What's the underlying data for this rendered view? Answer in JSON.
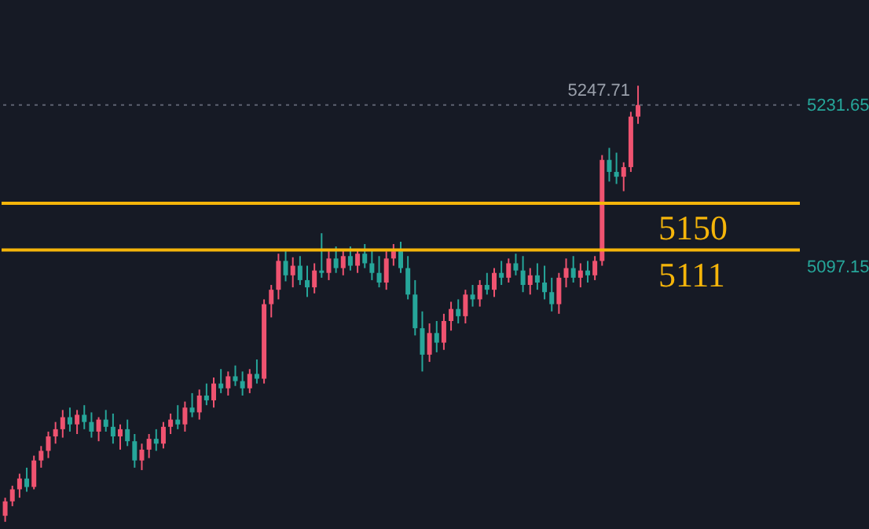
{
  "chart_data": {
    "type": "candlestick",
    "categories": [
      null,
      null,
      null,
      null,
      null,
      null,
      null,
      null,
      null,
      null,
      null,
      null,
      null,
      null,
      null,
      null,
      null,
      null,
      null,
      null,
      null,
      null,
      null,
      null,
      null,
      null,
      null,
      null,
      null,
      null,
      null,
      null,
      null,
      null,
      null,
      null,
      null,
      null,
      null,
      null,
      null,
      null,
      null,
      null,
      null,
      null,
      null,
      null,
      null,
      null,
      null,
      null,
      null,
      null,
      null,
      null,
      null,
      null,
      null,
      null,
      null,
      null,
      null,
      null,
      null,
      null,
      null,
      null,
      null,
      null,
      null,
      null,
      null,
      null,
      null,
      null,
      null,
      null,
      null,
      null,
      null,
      null,
      null,
      null,
      null,
      null,
      null,
      null,
      null,
      null,
      null,
      null,
      null,
      null,
      null,
      null,
      null,
      null,
      null,
      null,
      null,
      null,
      null,
      null,
      null,
      null,
      null,
      null,
      null,
      null,
      null
    ],
    "ohlc": [
      [
        4890,
        4905,
        4885,
        4902
      ],
      [
        4902,
        4915,
        4898,
        4912
      ],
      [
        4912,
        4925,
        4905,
        4921
      ],
      [
        4921,
        4930,
        4910,
        4914
      ],
      [
        4914,
        4940,
        4912,
        4936
      ],
      [
        4936,
        4948,
        4930,
        4944
      ],
      [
        4944,
        4960,
        4938,
        4956
      ],
      [
        4956,
        4968,
        4950,
        4962
      ],
      [
        4962,
        4978,
        4955,
        4972
      ],
      [
        4972,
        4980,
        4960,
        4966
      ],
      [
        4966,
        4978,
        4958,
        4974
      ],
      [
        4974,
        4982,
        4962,
        4968
      ],
      [
        4968,
        4976,
        4955,
        4960
      ],
      [
        4960,
        4972,
        4952,
        4970
      ],
      [
        4970,
        4978,
        4960,
        4964
      ],
      [
        4964,
        4975,
        4950,
        4956
      ],
      [
        4956,
        4966,
        4945,
        4962
      ],
      [
        4962,
        4970,
        4948,
        4952
      ],
      [
        4952,
        4958,
        4930,
        4936
      ],
      [
        4936,
        4950,
        4928,
        4945
      ],
      [
        4945,
        4958,
        4938,
        4954
      ],
      [
        4954,
        4962,
        4944,
        4950
      ],
      [
        4950,
        4968,
        4946,
        4964
      ],
      [
        4964,
        4975,
        4958,
        4970
      ],
      [
        4970,
        4982,
        4962,
        4966
      ],
      [
        4966,
        4985,
        4960,
        4980
      ],
      [
        4980,
        4992,
        4972,
        4976
      ],
      [
        4976,
        4995,
        4970,
        4990
      ],
      [
        4990,
        5000,
        4982,
        4986
      ],
      [
        4986,
        5005,
        4980,
        5000
      ],
      [
        5000,
        5012,
        4992,
        4996
      ],
      [
        4996,
        5010,
        4990,
        5006
      ],
      [
        5006,
        5015,
        4998,
        5002
      ],
      [
        5002,
        5010,
        4990,
        4996
      ],
      [
        4996,
        5012,
        4992,
        5008
      ],
      [
        5008,
        5020,
        5000,
        5004
      ],
      [
        5004,
        5070,
        5000,
        5066
      ],
      [
        5066,
        5082,
        5055,
        5078
      ],
      [
        5078,
        5108,
        5070,
        5102
      ],
      [
        5102,
        5110,
        5085,
        5090
      ],
      [
        5090,
        5105,
        5080,
        5098
      ],
      [
        5098,
        5106,
        5082,
        5086
      ],
      [
        5086,
        5098,
        5072,
        5080
      ],
      [
        5080,
        5100,
        5075,
        5094
      ],
      [
        5094,
        5125,
        5088,
        5092
      ],
      [
        5092,
        5110,
        5086,
        5104
      ],
      [
        5104,
        5114,
        5092,
        5096
      ],
      [
        5096,
        5112,
        5090,
        5106
      ],
      [
        5106,
        5114,
        5094,
        5098
      ],
      [
        5098,
        5112,
        5092,
        5108
      ],
      [
        5108,
        5116,
        5096,
        5100
      ],
      [
        5100,
        5112,
        5086,
        5092
      ],
      [
        5092,
        5106,
        5080,
        5084
      ],
      [
        5084,
        5110,
        5078,
        5104
      ],
      [
        5104,
        5116,
        5098,
        5110
      ],
      [
        5110,
        5118,
        5092,
        5096
      ],
      [
        5096,
        5106,
        5070,
        5074
      ],
      [
        5074,
        5086,
        5040,
        5046
      ],
      [
        5046,
        5060,
        5010,
        5024
      ],
      [
        5024,
        5050,
        5018,
        5042
      ],
      [
        5042,
        5052,
        5026,
        5034
      ],
      [
        5034,
        5058,
        5028,
        5052
      ],
      [
        5052,
        5068,
        5044,
        5062
      ],
      [
        5062,
        5070,
        5050,
        5056
      ],
      [
        5056,
        5078,
        5050,
        5074
      ],
      [
        5074,
        5082,
        5064,
        5070
      ],
      [
        5070,
        5086,
        5064,
        5082
      ],
      [
        5082,
        5092,
        5074,
        5078
      ],
      [
        5078,
        5096,
        5072,
        5092
      ],
      [
        5092,
        5102,
        5082,
        5088
      ],
      [
        5088,
        5104,
        5084,
        5100
      ],
      [
        5100,
        5108,
        5090,
        5094
      ],
      [
        5094,
        5106,
        5076,
        5082
      ],
      [
        5082,
        5096,
        5074,
        5090
      ],
      [
        5090,
        5100,
        5078,
        5084
      ],
      [
        5084,
        5098,
        5070,
        5076
      ],
      [
        5076,
        5088,
        5060,
        5066
      ],
      [
        5066,
        5092,
        5058,
        5088
      ],
      [
        5088,
        5104,
        5080,
        5096
      ],
      [
        5096,
        5106,
        5084,
        5088
      ],
      [
        5088,
        5100,
        5080,
        5094
      ],
      [
        5094,
        5102,
        5084,
        5090
      ],
      [
        5090,
        5106,
        5086,
        5102
      ],
      [
        5102,
        5190,
        5098,
        5186
      ],
      [
        5186,
        5196,
        5168,
        5176
      ],
      [
        5176,
        5192,
        5166,
        5172
      ],
      [
        5172,
        5184,
        5160,
        5180
      ],
      [
        5180,
        5226,
        5176,
        5222
      ],
      [
        5222,
        5247.71,
        5216,
        5231.65
      ],
      null,
      null,
      null,
      null,
      null,
      null,
      null,
      null,
      null,
      null,
      null,
      null,
      null,
      null,
      null,
      null,
      null,
      null,
      null,
      null,
      null,
      null
    ],
    "ylim": [
      4879,
      5319
    ],
    "yticks": [
      {
        "value": 5097.15,
        "label": "5097.15"
      },
      {
        "value": 5231.65,
        "label": "5231.65"
      }
    ],
    "tick_labels": "y",
    "grid": false,
    "ref_lines": [
      {
        "axis": "y",
        "value": 5150,
        "label": "5150",
        "color": "#f5b50a"
      },
      {
        "axis": "y",
        "value": 5111,
        "label": "5111",
        "color": "#f5b50a"
      },
      {
        "axis": "y",
        "value": 5231.65,
        "color": "#5d6270",
        "line_style": "dotted"
      }
    ],
    "annotations": [
      "5247.71"
    ]
  }
}
